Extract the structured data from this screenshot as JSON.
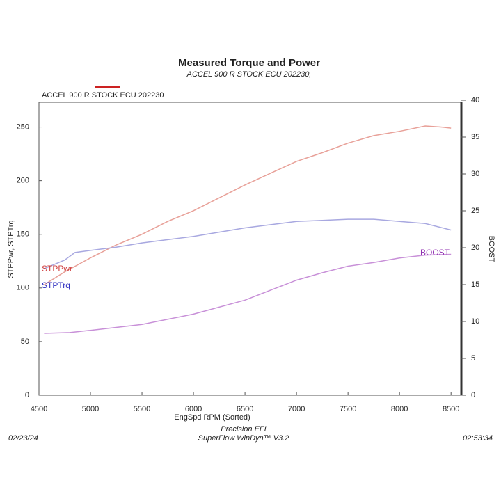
{
  "chart_data": {
    "type": "line",
    "title": "Measured Torque and Power",
    "subtitle": "ACCEL 900 R STOCK ECU 202230,",
    "legend": {
      "title": "ACCEL 900 R STOCK ECU 202230",
      "color": "#cc2222"
    },
    "x_label": "EngSpd RPM    (Sorted)",
    "y_label": "STPPwr, STPTrq",
    "y2_label": "BOOST",
    "footer": {
      "center1": "Precision EFI",
      "center2": "SuperFlow WinDyn™ V3.2",
      "left": "02/23/24",
      "right": "02:53:34"
    },
    "xlim": [
      4500,
      8600
    ],
    "xticks": [
      4500,
      5000,
      5500,
      6000,
      6500,
      7000,
      7500,
      8000,
      8500
    ],
    "ylim": [
      0,
      275
    ],
    "yticks": [
      0,
      50,
      100,
      150,
      200,
      250
    ],
    "y2lim": [
      0,
      40
    ],
    "y2ticks": [
      0,
      5,
      10,
      15,
      20,
      25,
      30,
      35,
      40
    ],
    "series": [
      {
        "name": "STPPwr",
        "color": "#e8a098",
        "label_color": "#d04040",
        "x": [
          4550,
          4750,
          5000,
          5250,
          5500,
          5750,
          6000,
          6250,
          6500,
          6750,
          7000,
          7250,
          7500,
          7750,
          8000,
          8250,
          8400,
          8500
        ],
        "values": [
          103,
          115,
          128,
          140,
          150,
          162,
          172,
          184,
          196,
          207,
          218,
          226,
          235,
          242,
          246,
          251,
          250,
          249
        ]
      },
      {
        "name": "STPTrq",
        "color": "#a8a8e0",
        "label_color": "#3030c0",
        "x": [
          4550,
          4750,
          4850,
          5000,
          5250,
          5500,
          5750,
          6000,
          6250,
          6500,
          6750,
          7000,
          7250,
          7500,
          7750,
          8000,
          8250,
          8500
        ],
        "values": [
          118,
          126,
          133,
          135,
          138,
          142,
          145,
          148,
          152,
          156,
          159,
          162,
          163,
          164,
          164,
          162,
          160,
          154
        ]
      },
      {
        "name": "BOOST",
        "color": "#c890d8",
        "label_color": "#9030b0",
        "axis": "y2",
        "x": [
          4550,
          4800,
          5000,
          5500,
          6000,
          6500,
          7000,
          7250,
          7500,
          7750,
          8000,
          8250,
          8500
        ],
        "values": [
          8.4,
          8.5,
          8.8,
          9.6,
          11,
          12.9,
          15.6,
          16.6,
          17.5,
          18,
          18.6,
          19,
          19.1
        ]
      }
    ]
  }
}
